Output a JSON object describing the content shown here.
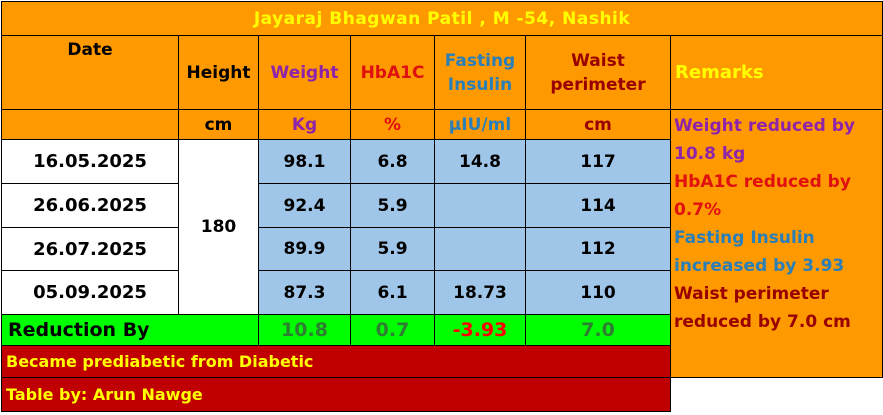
{
  "title": "Jayaraj Bhagwan Patil ,  M -54, Nashik",
  "headers": {
    "date": "Date",
    "height": "Height",
    "weight": "Weight",
    "hba1c": "HbA1C",
    "fasting_insulin": "Fasting Insulin",
    "waist": "Waist perimeter",
    "remarks": "Remarks"
  },
  "units": {
    "height": "cm",
    "weight": "Kg",
    "hba1c": "%",
    "fasting_insulin": "µIU/ml",
    "waist": "cm"
  },
  "height_value": "180",
  "rows": [
    {
      "date": "16.05.2025",
      "weight": "98.1",
      "hba1c": "6.8",
      "insulin": "14.8",
      "waist": "117"
    },
    {
      "date": "26.06.2025",
      "weight": "92.4",
      "hba1c": "5.9",
      "insulin": "",
      "waist": "114"
    },
    {
      "date": "26.07.2025",
      "weight": "89.9",
      "hba1c": "5.9",
      "insulin": "",
      "waist": "112"
    },
    {
      "date": "05.09.2025",
      "weight": "87.3",
      "hba1c": "6.1",
      "insulin": "18.73",
      "waist": "110"
    }
  ],
  "reduction": {
    "label": "Reduction By",
    "weight": "10.8",
    "hba1c": "0.7",
    "insulin": "-3.93",
    "waist": "7.0"
  },
  "remarks": [
    {
      "text": "Weight reduced by 10.8 kg",
      "color": "#8e24aa"
    },
    {
      "text": "HbA1C reduced by 0.7%",
      "color": "#e01010"
    },
    {
      "text": "Fasting Insulin increased by 3.93",
      "color": "#2a7fb8"
    },
    {
      "text": "Waist perimeter reduced by 7.0 cm",
      "color": "#990000"
    }
  ],
  "footer": {
    "note": "Became prediabetic from Diabetic",
    "credit": "Table by: Arun Nawge"
  }
}
